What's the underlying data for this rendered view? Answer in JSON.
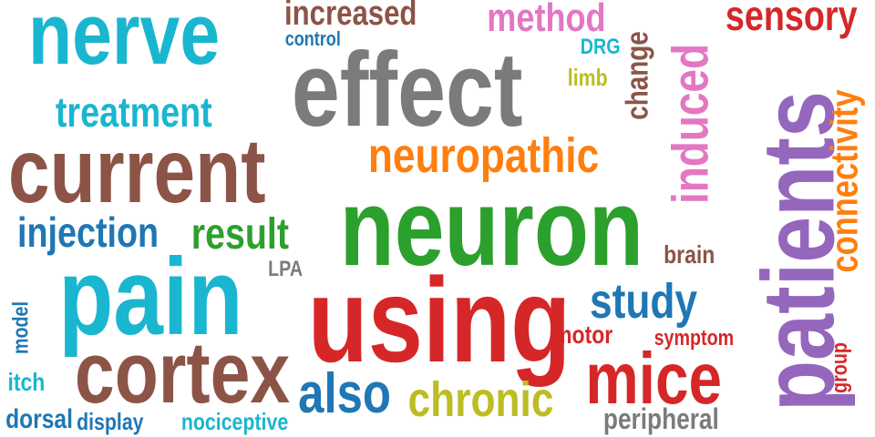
{
  "palette": {
    "cyan": "#1ab6cf",
    "brown": "#8c5447",
    "gray": "#7b7b7b",
    "green": "#2ca02c",
    "red": "#d62728",
    "orange": "#ff7f0e",
    "purple": "#9467bd",
    "pink": "#e377c2",
    "olive": "#bcbd22",
    "blue": "#1f77b4"
  },
  "words": {
    "nerve": "nerve",
    "treatment": "treatment",
    "current": "current",
    "injection": "injection",
    "result": "result",
    "pain": "pain",
    "LPA": "LPA",
    "model": "model",
    "itch": "itch",
    "cortex": "cortex",
    "dorsal": "dorsal",
    "display": "display",
    "nociceptive": "nociceptive",
    "increased": "increased",
    "control": "control",
    "effect": "effect",
    "method": "method",
    "DRG": "DRG",
    "limb": "limb",
    "change": "change",
    "induced": "induced",
    "sensory": "sensory",
    "neuropathic": "neuropathic",
    "neuron": "neuron",
    "patients": "patients",
    "connectivity": "connectivity",
    "brain": "brain",
    "using": "using",
    "study": "study",
    "motor": "motor",
    "symptom": "symptom",
    "group": "group",
    "also": "also",
    "chronic": "chronic",
    "mice": "mice",
    "peripheral": "peripheral"
  }
}
